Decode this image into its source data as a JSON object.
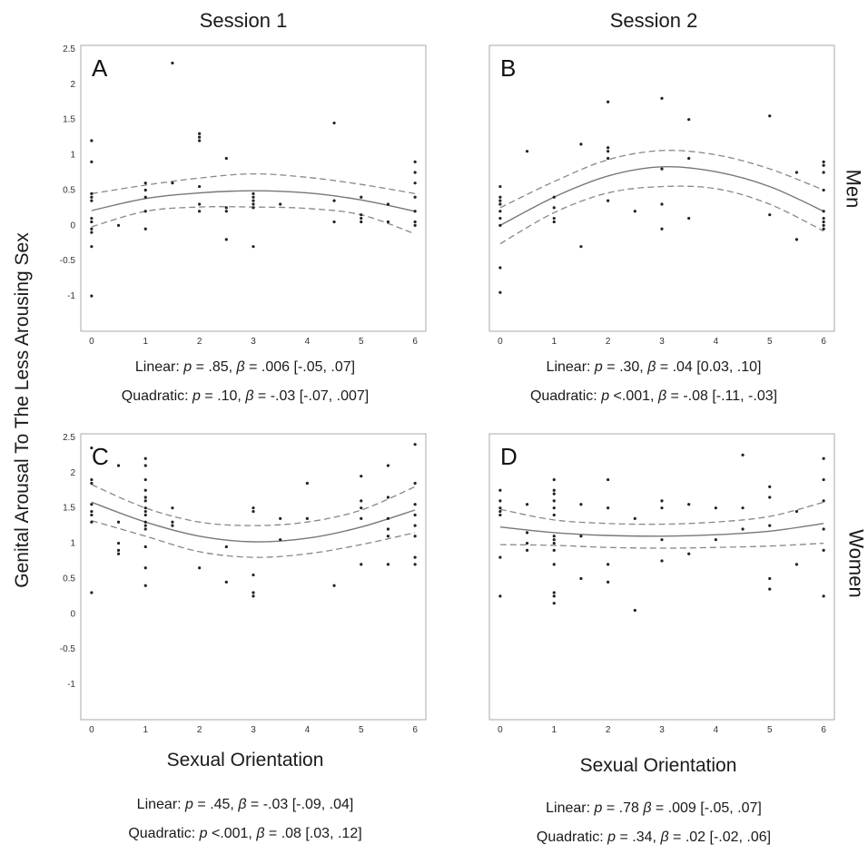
{
  "column_headers": [
    "Session 1",
    "Session 2"
  ],
  "row_headers": [
    "Men",
    "Women"
  ],
  "y_axis_label": "Genital Arousal To The Less Arousing Sex",
  "x_axis_label": "Sexual Orientation",
  "stats": {
    "A": {
      "linear": {
        "prefix": "Linear: ",
        "p": "p",
        "mid": " = .85, ",
        "b": "β",
        "end": " = .006 [-.05, .07]"
      },
      "quadratic": {
        "prefix": "Quadratic: ",
        "p": "p",
        "mid": " = .10, ",
        "b": "β",
        "end": " = -.03 [-.07, .007]"
      }
    },
    "B": {
      "linear": {
        "prefix": "Linear: ",
        "p": "p",
        "mid": " = .30, ",
        "b": "β",
        "end": " = .04 [0.03, .10]"
      },
      "quadratic": {
        "prefix": "Quadratic: ",
        "p": "p",
        "mid": " <.001, ",
        "b": "β",
        "end": " = -.08 [-.11, -.03]"
      }
    },
    "C": {
      "linear": {
        "prefix": "Linear: ",
        "p": "p",
        "mid": " = .45, ",
        "b": "β",
        "end": " = -.03 [-.09, .04]"
      },
      "quadratic": {
        "prefix": "Quadratic: ",
        "p": "p",
        "mid": " <.001, ",
        "b": "β",
        "end": " = .08 [.03, .12]"
      }
    },
    "D": {
      "linear": {
        "prefix": "Linear: ",
        "p": "p",
        "mid": " = .78 ",
        "b": "β",
        "end": " = .009 [-.05, .07]"
      },
      "quadratic": {
        "prefix": "Quadratic: ",
        "p": "p",
        "mid": " = .34, ",
        "b": "β",
        "end": " = .02 [-.02, .06]"
      }
    }
  },
  "chart_data": [
    {
      "type": "scatter",
      "panel": "A",
      "title": "",
      "xlabel": "",
      "ylabel": "",
      "xlim": [
        0,
        6
      ],
      "ylim": [
        -1.5,
        2.5
      ],
      "x_ticks": [
        "0",
        "1",
        "2",
        "3",
        "4",
        "5",
        "6"
      ],
      "y_ticks": [
        "2.5",
        "2",
        "1.5",
        "1",
        "0.5",
        "0",
        "-0.5",
        "-1"
      ],
      "points": [
        [
          0,
          1.2
        ],
        [
          0,
          0.9
        ],
        [
          0,
          0.45
        ],
        [
          0,
          0.4
        ],
        [
          0,
          0.35
        ],
        [
          0,
          0.1
        ],
        [
          0,
          0.05
        ],
        [
          0,
          -0.05
        ],
        [
          0,
          -0.1
        ],
        [
          0,
          -0.3
        ],
        [
          0,
          -1.0
        ],
        [
          0.5,
          0.0
        ],
        [
          1,
          0.6
        ],
        [
          1,
          0.5
        ],
        [
          1,
          0.4
        ],
        [
          1,
          0.2
        ],
        [
          1,
          -0.05
        ],
        [
          1.5,
          2.3
        ],
        [
          1.5,
          0.6
        ],
        [
          2,
          1.3
        ],
        [
          2,
          1.25
        ],
        [
          2,
          1.2
        ],
        [
          2,
          0.55
        ],
        [
          2,
          0.3
        ],
        [
          2,
          0.2
        ],
        [
          2.5,
          0.95
        ],
        [
          2.5,
          0.25
        ],
        [
          2.5,
          0.2
        ],
        [
          2.5,
          -0.2
        ],
        [
          3,
          0.45
        ],
        [
          3,
          0.4
        ],
        [
          3,
          0.35
        ],
        [
          3,
          0.3
        ],
        [
          3,
          0.25
        ],
        [
          3,
          -0.3
        ],
        [
          3.5,
          0.3
        ],
        [
          4.5,
          1.45
        ],
        [
          4.5,
          0.35
        ],
        [
          4.5,
          0.05
        ],
        [
          5,
          0.4
        ],
        [
          5,
          0.15
        ],
        [
          5,
          0.1
        ],
        [
          5,
          0.05
        ],
        [
          5.5,
          0.3
        ],
        [
          5.5,
          0.05
        ],
        [
          6,
          0.9
        ],
        [
          6,
          0.75
        ],
        [
          6,
          0.6
        ],
        [
          6,
          0.4
        ],
        [
          6,
          0.2
        ],
        [
          6,
          0.05
        ],
        [
          6,
          0.0
        ]
      ],
      "fit": {
        "x": [
          0,
          1,
          2,
          3,
          4,
          5,
          6
        ],
        "y": [
          0.21,
          0.38,
          0.46,
          0.49,
          0.46,
          0.36,
          0.2
        ]
      },
      "ci_upper": {
        "x": [
          0,
          1,
          2,
          3,
          4,
          5,
          6
        ],
        "y": [
          0.45,
          0.57,
          0.67,
          0.73,
          0.68,
          0.58,
          0.45
        ]
      },
      "ci_lower": {
        "x": [
          0,
          1,
          2,
          3,
          4,
          5,
          6
        ],
        "y": [
          -0.02,
          0.2,
          0.26,
          0.26,
          0.24,
          0.15,
          -0.12
        ]
      }
    },
    {
      "type": "scatter",
      "panel": "B",
      "title": "",
      "xlabel": "",
      "ylabel": "",
      "xlim": [
        0,
        6
      ],
      "ylim": [
        -1.5,
        2.5
      ],
      "x_ticks": [
        "0",
        "1",
        "2",
        "3",
        "4",
        "5",
        "6"
      ],
      "y_ticks": [],
      "points": [
        [
          0,
          0.55
        ],
        [
          0,
          0.4
        ],
        [
          0,
          0.35
        ],
        [
          0,
          0.3
        ],
        [
          0,
          0.2
        ],
        [
          0,
          0.1
        ],
        [
          0,
          0.0
        ],
        [
          0,
          -0.6
        ],
        [
          0,
          -0.95
        ],
        [
          0.5,
          1.05
        ],
        [
          1,
          0.4
        ],
        [
          1,
          0.25
        ],
        [
          1,
          0.1
        ],
        [
          1,
          0.05
        ],
        [
          1.5,
          1.15
        ],
        [
          1.5,
          -0.3
        ],
        [
          2,
          1.75
        ],
        [
          2,
          1.1
        ],
        [
          2,
          1.05
        ],
        [
          2,
          0.95
        ],
        [
          2,
          0.35
        ],
        [
          2.5,
          0.2
        ],
        [
          3,
          1.8
        ],
        [
          3,
          0.8
        ],
        [
          3,
          0.3
        ],
        [
          3,
          -0.05
        ],
        [
          3.5,
          1.5
        ],
        [
          3.5,
          0.95
        ],
        [
          3.5,
          0.1
        ],
        [
          5,
          1.55
        ],
        [
          5,
          0.15
        ],
        [
          5.5,
          0.75
        ],
        [
          5.5,
          -0.2
        ],
        [
          6,
          0.9
        ],
        [
          6,
          0.85
        ],
        [
          6,
          0.75
        ],
        [
          6,
          0.5
        ],
        [
          6,
          0.2
        ],
        [
          6,
          0.1
        ],
        [
          6,
          0.05
        ],
        [
          6,
          0.0
        ],
        [
          6,
          -0.05
        ]
      ],
      "fit": {
        "x": [
          0,
          1,
          2,
          3,
          4,
          5,
          6
        ],
        "y": [
          0.0,
          0.4,
          0.7,
          0.83,
          0.76,
          0.55,
          0.2
        ]
      },
      "ci_upper": {
        "x": [
          0,
          1,
          2,
          3,
          4,
          5,
          6
        ],
        "y": [
          0.25,
          0.62,
          0.93,
          1.06,
          1.0,
          0.8,
          0.5
        ]
      },
      "ci_lower": {
        "x": [
          0,
          1,
          2,
          3,
          4,
          5,
          6
        ],
        "y": [
          -0.26,
          0.18,
          0.46,
          0.55,
          0.52,
          0.3,
          -0.08
        ]
      }
    },
    {
      "type": "scatter",
      "panel": "C",
      "title": "",
      "xlabel": "",
      "ylabel": "",
      "xlim": [
        0,
        6
      ],
      "ylim": [
        -1.5,
        2.5
      ],
      "x_ticks": [
        "0",
        "1",
        "2",
        "3",
        "4",
        "5",
        "6"
      ],
      "y_ticks": [
        "2.5",
        "2",
        "1.5",
        "1",
        "0.5",
        "0",
        "-0.5",
        "-1"
      ],
      "points": [
        [
          0,
          2.35
        ],
        [
          0,
          1.9
        ],
        [
          0,
          1.85
        ],
        [
          0,
          1.55
        ],
        [
          0,
          1.45
        ],
        [
          0,
          1.4
        ],
        [
          0,
          1.3
        ],
        [
          0,
          0.3
        ],
        [
          0.5,
          2.1
        ],
        [
          0.5,
          1.3
        ],
        [
          0.5,
          1.0
        ],
        [
          0.5,
          0.9
        ],
        [
          0.5,
          0.85
        ],
        [
          1,
          2.2
        ],
        [
          1,
          2.1
        ],
        [
          1,
          1.9
        ],
        [
          1,
          1.75
        ],
        [
          1,
          1.65
        ],
        [
          1,
          1.6
        ],
        [
          1,
          1.5
        ],
        [
          1,
          1.45
        ],
        [
          1,
          1.4
        ],
        [
          1,
          1.3
        ],
        [
          1,
          1.25
        ],
        [
          1,
          1.2
        ],
        [
          1,
          0.95
        ],
        [
          1,
          0.65
        ],
        [
          1,
          0.4
        ],
        [
          1.5,
          1.5
        ],
        [
          1.5,
          1.3
        ],
        [
          1.5,
          1.25
        ],
        [
          2,
          0.65
        ],
        [
          2.5,
          0.95
        ],
        [
          2.5,
          0.45
        ],
        [
          3,
          1.5
        ],
        [
          3,
          1.45
        ],
        [
          3,
          0.55
        ],
        [
          3,
          0.3
        ],
        [
          3,
          0.25
        ],
        [
          3.5,
          1.35
        ],
        [
          3.5,
          1.05
        ],
        [
          4,
          1.85
        ],
        [
          4,
          1.35
        ],
        [
          4.5,
          0.4
        ],
        [
          5,
          1.95
        ],
        [
          5,
          1.6
        ],
        [
          5,
          1.5
        ],
        [
          5,
          1.35
        ],
        [
          5,
          0.7
        ],
        [
          5.5,
          2.1
        ],
        [
          5.5,
          1.65
        ],
        [
          5.5,
          1.35
        ],
        [
          5.5,
          1.2
        ],
        [
          5.5,
          1.1
        ],
        [
          5.5,
          0.7
        ],
        [
          6,
          2.4
        ],
        [
          6,
          1.85
        ],
        [
          6,
          1.55
        ],
        [
          6,
          1.4
        ],
        [
          6,
          1.25
        ],
        [
          6,
          1.1
        ],
        [
          6,
          0.8
        ],
        [
          6,
          0.7
        ]
      ],
      "fit": {
        "x": [
          0,
          1,
          2,
          3,
          4,
          5,
          6
        ],
        "y": [
          1.58,
          1.3,
          1.1,
          1.02,
          1.07,
          1.23,
          1.47
        ]
      },
      "ci_upper": {
        "x": [
          0,
          1,
          2,
          3,
          4,
          5,
          6
        ],
        "y": [
          1.83,
          1.5,
          1.3,
          1.25,
          1.3,
          1.47,
          1.8
        ]
      },
      "ci_lower": {
        "x": [
          0,
          1,
          2,
          3,
          4,
          5,
          6
        ],
        "y": [
          1.32,
          1.1,
          0.88,
          0.8,
          0.85,
          0.98,
          1.15
        ]
      }
    },
    {
      "type": "scatter",
      "panel": "D",
      "title": "",
      "xlabel": "",
      "ylabel": "",
      "xlim": [
        0,
        6
      ],
      "ylim": [
        -1.5,
        2.5
      ],
      "x_ticks": [
        "0",
        "1",
        "2",
        "3",
        "4",
        "5",
        "6"
      ],
      "y_ticks": [],
      "points": [
        [
          0,
          1.75
        ],
        [
          0,
          1.6
        ],
        [
          0,
          1.5
        ],
        [
          0,
          1.45
        ],
        [
          0,
          1.4
        ],
        [
          0,
          0.8
        ],
        [
          0,
          0.25
        ],
        [
          0.5,
          1.55
        ],
        [
          0.5,
          1.15
        ],
        [
          0.5,
          1.0
        ],
        [
          0.5,
          0.9
        ],
        [
          1,
          1.9
        ],
        [
          1,
          1.75
        ],
        [
          1,
          1.7
        ],
        [
          1,
          1.6
        ],
        [
          1,
          1.5
        ],
        [
          1,
          1.4
        ],
        [
          1,
          1.1
        ],
        [
          1,
          1.05
        ],
        [
          1,
          1.0
        ],
        [
          1,
          0.9
        ],
        [
          1,
          0.7
        ],
        [
          1,
          0.3
        ],
        [
          1,
          0.25
        ],
        [
          1,
          0.15
        ],
        [
          1.5,
          1.55
        ],
        [
          1.5,
          1.1
        ],
        [
          1.5,
          0.5
        ],
        [
          2,
          1.9
        ],
        [
          2,
          1.5
        ],
        [
          2,
          0.7
        ],
        [
          2,
          0.45
        ],
        [
          2.5,
          1.35
        ],
        [
          2.5,
          0.05
        ],
        [
          3,
          1.6
        ],
        [
          3,
          1.5
        ],
        [
          3,
          1.05
        ],
        [
          3,
          0.75
        ],
        [
          3.5,
          1.55
        ],
        [
          3.5,
          0.85
        ],
        [
          4,
          1.5
        ],
        [
          4,
          1.05
        ],
        [
          4.5,
          2.25
        ],
        [
          4.5,
          1.5
        ],
        [
          4.5,
          1.2
        ],
        [
          5,
          1.8
        ],
        [
          5,
          1.65
        ],
        [
          5,
          1.25
        ],
        [
          5,
          0.5
        ],
        [
          5,
          0.35
        ],
        [
          5.5,
          1.45
        ],
        [
          5.5,
          0.7
        ],
        [
          6,
          2.2
        ],
        [
          6,
          1.9
        ],
        [
          6,
          1.6
        ],
        [
          6,
          1.2
        ],
        [
          6,
          0.9
        ],
        [
          6,
          0.25
        ]
      ],
      "fit": {
        "x": [
          0,
          1,
          2,
          3,
          4,
          5,
          6
        ],
        "y": [
          1.23,
          1.15,
          1.11,
          1.1,
          1.12,
          1.17,
          1.28
        ]
      },
      "ci_upper": {
        "x": [
          0,
          1,
          2,
          3,
          4,
          5,
          6
        ],
        "y": [
          1.48,
          1.33,
          1.28,
          1.27,
          1.3,
          1.38,
          1.58
        ]
      },
      "ci_lower": {
        "x": [
          0,
          1,
          2,
          3,
          4,
          5,
          6
        ],
        "y": [
          0.98,
          0.97,
          0.94,
          0.93,
          0.94,
          0.96,
          1.0
        ]
      }
    }
  ]
}
